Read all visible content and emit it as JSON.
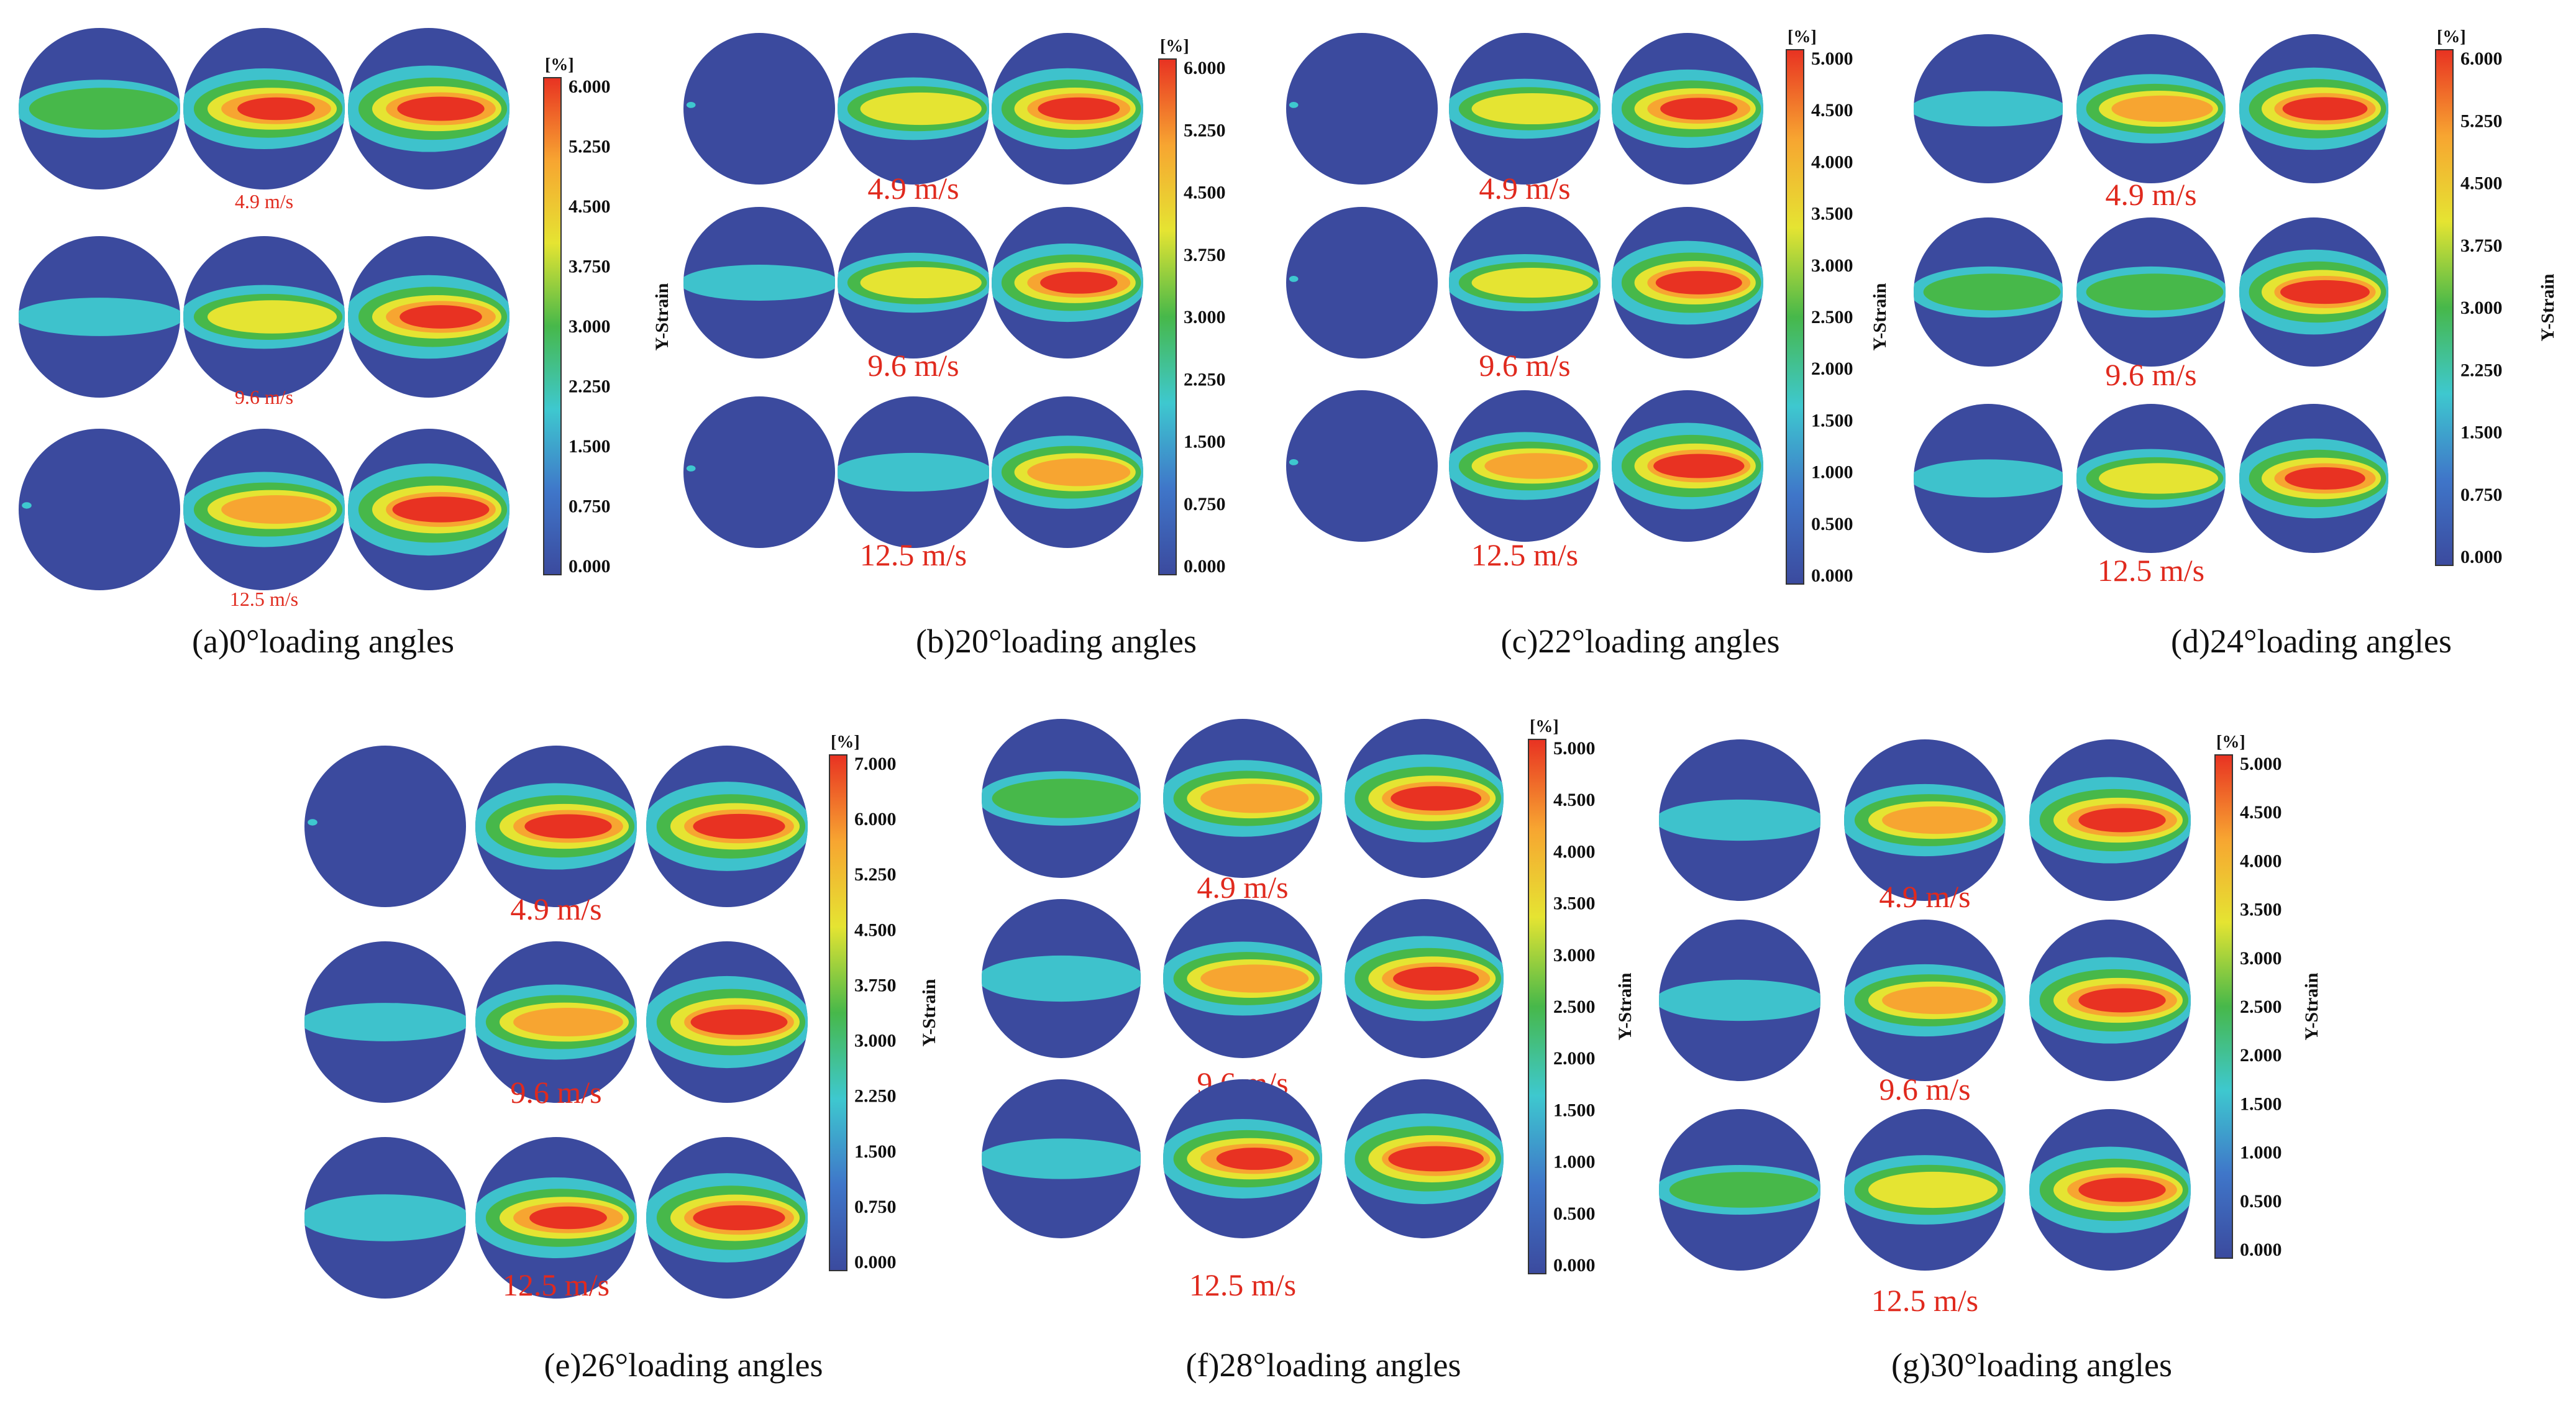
{
  "figure": {
    "cmap_colors": [
      "#3b4a9e",
      "#3f76c9",
      "#3ec8cf",
      "#47b84a",
      "#e5e432",
      "#f7a531",
      "#e83222"
    ],
    "unit_label": "[%]",
    "axis_label": "Y-Strain",
    "panels": [
      {
        "id": "a",
        "caption": "(a)0°loading angles",
        "ticks": [
          "6.000",
          "5.250",
          "4.500",
          "3.750",
          "3.000",
          "2.250",
          "1.500",
          "0.750",
          "0.000"
        ],
        "rows": [
          {
            "speed": "4.9 m/s",
            "band": [
              0.4,
              0.8,
              0.9
            ]
          },
          {
            "speed": "9.6 m/s",
            "band": [
              0.05,
              0.5,
              0.85
            ]
          },
          {
            "speed": "12.5 m/s",
            "band": [
              0.0,
              0.7,
              1.0
            ]
          }
        ]
      },
      {
        "id": "b",
        "caption": "(b)20°loading angles",
        "ticks": [
          "6.000",
          "5.250",
          "4.500",
          "3.750",
          "3.000",
          "2.250",
          "1.500",
          "0.750",
          "0.000"
        ],
        "rows": [
          {
            "speed": "4.9 m/s",
            "band": [
              0.0,
              0.55,
              0.9
            ]
          },
          {
            "speed": "9.6 m/s",
            "band": [
              0.05,
              0.5,
              0.85
            ]
          },
          {
            "speed": "12.5 m/s",
            "band": [
              0.0,
              0.1,
              0.75
            ]
          }
        ]
      },
      {
        "id": "c",
        "caption": "(c)22°loading angles",
        "ticks": [
          "5.000",
          "4.500",
          "4.000",
          "3.500",
          "3.000",
          "2.500",
          "2.000",
          "1.500",
          "1.000",
          "0.500",
          "0.000"
        ],
        "rows": [
          {
            "speed": "4.9 m/s",
            "band": [
              0.0,
              0.5,
              0.85
            ]
          },
          {
            "speed": "9.6 m/s",
            "band": [
              0.0,
              0.45,
              0.95
            ]
          },
          {
            "speed": "12.5 m/s",
            "band": [
              0.0,
              0.65,
              1.0
            ]
          }
        ]
      },
      {
        "id": "d",
        "caption": "(d)24°loading angles",
        "ticks": [
          "6.000",
          "5.250",
          "4.500",
          "3.750",
          "3.000",
          "2.250",
          "1.500",
          "0.750",
          "0.000"
        ],
        "rows": [
          {
            "speed": "4.9 m/s",
            "band": [
              0.05,
              0.7,
              0.95
            ]
          },
          {
            "speed": "9.6 m/s",
            "band": [
              0.35,
              0.35,
              1.0
            ]
          },
          {
            "speed": "12.5 m/s",
            "band": [
              0.1,
              0.5,
              0.9
            ]
          }
        ]
      },
      {
        "id": "e",
        "caption": "(e)26°loading angles",
        "ticks": [
          "7.000",
          "6.000",
          "5.250",
          "4.500",
          "3.750",
          "3.000",
          "2.250",
          "1.500",
          "0.750",
          "0.000"
        ],
        "rows": [
          {
            "speed": "4.9 m/s",
            "band": [
              0.0,
              0.9,
              0.95
            ]
          },
          {
            "speed": "9.6 m/s",
            "band": [
              0.05,
              0.7,
              1.0
            ]
          },
          {
            "speed": "12.5 m/s",
            "band": [
              0.2,
              0.8,
              0.95
            ]
          }
        ]
      },
      {
        "id": "f",
        "caption": "(f)28°loading angles",
        "ticks": [
          "5.000",
          "4.500",
          "4.000",
          "3.500",
          "3.000",
          "2.500",
          "2.000",
          "1.500",
          "1.000",
          "0.500",
          "0.000"
        ],
        "rows": [
          {
            "speed": "4.9 m/s",
            "band": [
              0.35,
              0.75,
              0.95
            ]
          },
          {
            "speed": "9.6 m/s",
            "band": [
              0.2,
              0.7,
              0.9
            ]
          },
          {
            "speed": "12.5 m/s",
            "band": [
              0.1,
              0.8,
              1.0
            ]
          }
        ]
      },
      {
        "id": "g",
        "caption": "(g)30°loading angles",
        "ticks": [
          "5.000",
          "4.500",
          "4.000",
          "3.500",
          "3.000",
          "2.500",
          "2.000",
          "1.500",
          "1.000",
          "0.500",
          "0.000"
        ],
        "rows": [
          {
            "speed": "4.9 m/s",
            "band": [
              0.1,
              0.65,
              0.9
            ]
          },
          {
            "speed": "9.6 m/s",
            "band": [
              0.1,
              0.65,
              0.9
            ]
          },
          {
            "speed": "12.5 m/s",
            "band": [
              0.25,
              0.6,
              0.9
            ]
          }
        ]
      }
    ]
  }
}
